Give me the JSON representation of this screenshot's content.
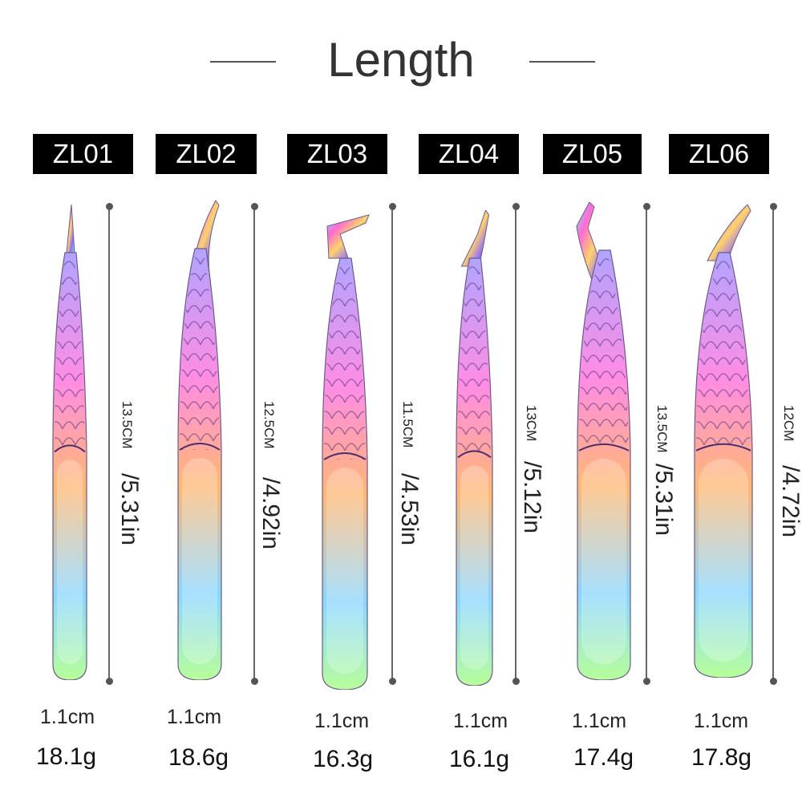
{
  "title": "Length",
  "products": [
    {
      "model": "ZL01",
      "length_cm": "13.5CM",
      "length_in": "/5.31in",
      "width": "1.1cm",
      "weight": "18.1g",
      "tip": "straight"
    },
    {
      "model": "ZL02",
      "length_cm": "12.5CM",
      "length_in": "/4.92in",
      "width": "1.1cm",
      "weight": "18.6g",
      "tip": "curved"
    },
    {
      "model": "ZL03",
      "length_cm": "11.5CM",
      "length_in": "/4.53in",
      "width": "1.1cm",
      "weight": "16.3g",
      "tip": "l-shape"
    },
    {
      "model": "ZL04",
      "length_cm": "13CM",
      "length_in": "/5.12in",
      "width": "1.1cm",
      "weight": "16.1g",
      "tip": "angled"
    },
    {
      "model": "ZL05",
      "length_cm": "13.5CM",
      "length_in": "/5.31in",
      "width": "1.1cm",
      "weight": "17.4g",
      "tip": "bent-s"
    },
    {
      "model": "ZL06",
      "length_cm": "12CM",
      "length_in": "/4.72in",
      "width": "1.1cm",
      "weight": "17.8g",
      "tip": "angled-wide"
    }
  ],
  "colors": {
    "label_bg": "#000000",
    "label_text": "#ffffff",
    "dimension_line": "#666666"
  },
  "icons": [
    "rainbow-tweezer-icon",
    "dimension-line-icon"
  ]
}
